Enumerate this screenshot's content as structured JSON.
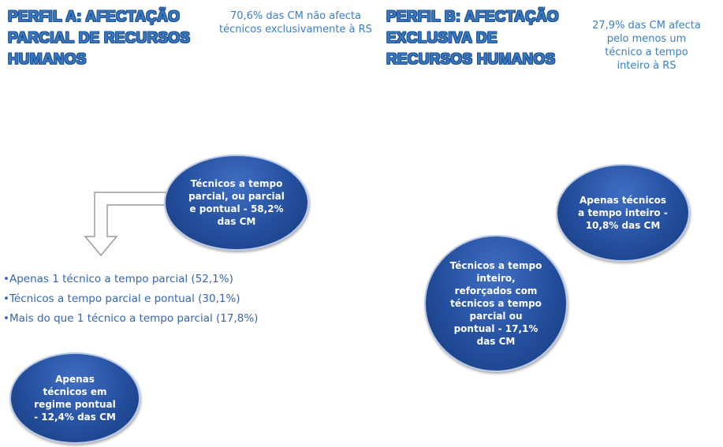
{
  "profile_a": {
    "title": "PERFIL A: AFECTAÇÃO PARCIAL DE RECURSOS HUMANOS",
    "note": "70,6% das CM não afecta técnicos exclusivamente à RS",
    "nodes": [
      {
        "label": "Técnicos a tempo parcial, ou parcial e pontual - 58,2% das CM"
      },
      {
        "label": "Apenas técnicos em regime pontual - 12,4% das CM"
      }
    ],
    "breakdown": [
      "Apenas 1 técnico a tempo parcial (52,1%)",
      "Técnicos a tempo parcial e pontual (30,1%)",
      "Mais do que 1 técnico a tempo parcial (17,8%)"
    ]
  },
  "profile_b": {
    "title": "PERFIL B: AFECTAÇÃO EXCLUSIVA DE RECURSOS HUMANOS",
    "note": "27,9% das CM afecta pelo menos um técnico a tempo inteiro à RS",
    "nodes": [
      {
        "label": "Apenas técnicos a tempo inteiro - 10,8% das CM"
      },
      {
        "label": "Técnicos a tempo inteiro, reforçados com técnicos a tempo parcial ou pontual - 17,1% das CM"
      }
    ]
  }
}
